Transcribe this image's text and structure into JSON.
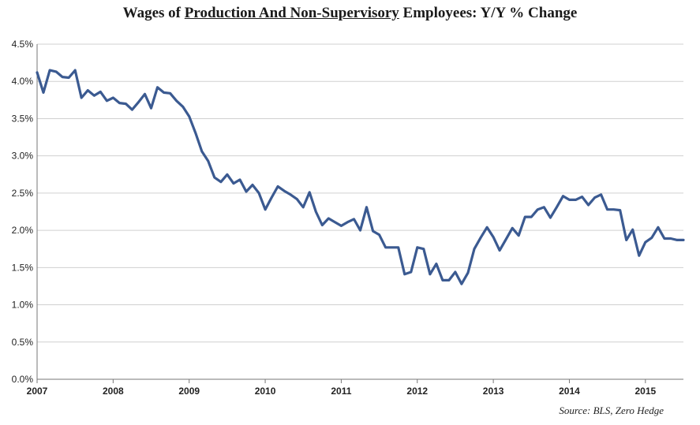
{
  "chart_data": {
    "type": "line",
    "title_parts": [
      "Wages of ",
      "Production And Non-Supervisory",
      " Employees: Y/Y % Change"
    ],
    "xlabel": "",
    "ylabel": "",
    "ylim": [
      0,
      4.5
    ],
    "y_ticks": [
      0,
      0.5,
      1.0,
      1.5,
      2.0,
      2.5,
      3.0,
      3.5,
      4.0,
      4.5
    ],
    "y_tick_labels": [
      "0.0%",
      "0.5%",
      "1.0%",
      "1.5%",
      "2.0%",
      "2.5%",
      "3.0%",
      "3.5%",
      "4.0%",
      "4.5%"
    ],
    "x_range": [
      2007.0,
      2015.5
    ],
    "x_ticks": [
      2007,
      2008,
      2009,
      2010,
      2011,
      2012,
      2013,
      2014,
      2015
    ],
    "x_tick_labels": [
      "2007",
      "2008",
      "2009",
      "2010",
      "2011",
      "2012",
      "2013",
      "2014",
      "2015"
    ],
    "grid": true,
    "series": [
      {
        "name": "Y/Y % Change",
        "color": "#3b5a91",
        "x": [
          2007.0,
          2007.083,
          2007.167,
          2007.25,
          2007.333,
          2007.417,
          2007.5,
          2007.583,
          2007.667,
          2007.75,
          2007.833,
          2007.917,
          2008.0,
          2008.083,
          2008.167,
          2008.25,
          2008.333,
          2008.417,
          2008.5,
          2008.583,
          2008.667,
          2008.75,
          2008.833,
          2008.917,
          2009.0,
          2009.083,
          2009.167,
          2009.25,
          2009.333,
          2009.417,
          2009.5,
          2009.583,
          2009.667,
          2009.75,
          2009.833,
          2009.917,
          2010.0,
          2010.083,
          2010.167,
          2010.25,
          2010.333,
          2010.417,
          2010.5,
          2010.583,
          2010.667,
          2010.75,
          2010.833,
          2010.917,
          2011.0,
          2011.083,
          2011.167,
          2011.25,
          2011.333,
          2011.417,
          2011.5,
          2011.583,
          2011.667,
          2011.75,
          2011.833,
          2011.917,
          2012.0,
          2012.083,
          2012.167,
          2012.25,
          2012.333,
          2012.417,
          2012.5,
          2012.583,
          2012.667,
          2012.75,
          2012.833,
          2012.917,
          2013.0,
          2013.083,
          2013.167,
          2013.25,
          2013.333,
          2013.417,
          2013.5,
          2013.583,
          2013.667,
          2013.75,
          2013.833,
          2013.917,
          2014.0,
          2014.083,
          2014.167,
          2014.25,
          2014.333,
          2014.417,
          2014.5,
          2014.583,
          2014.667,
          2014.75,
          2014.833,
          2014.917,
          2015.0,
          2015.083,
          2015.167,
          2015.25,
          2015.333,
          2015.417,
          2015.5
        ],
        "values": [
          4.12,
          3.85,
          4.15,
          4.13,
          4.06,
          4.05,
          4.15,
          3.78,
          3.88,
          3.81,
          3.86,
          3.74,
          3.78,
          3.71,
          3.7,
          3.62,
          3.72,
          3.83,
          3.64,
          3.92,
          3.85,
          3.84,
          3.74,
          3.66,
          3.53,
          3.31,
          3.06,
          2.93,
          2.71,
          2.65,
          2.75,
          2.63,
          2.68,
          2.52,
          2.61,
          2.5,
          2.28,
          2.44,
          2.59,
          2.53,
          2.48,
          2.42,
          2.31,
          2.51,
          2.25,
          2.07,
          2.16,
          2.11,
          2.06,
          2.11,
          2.15,
          2.0,
          2.31,
          1.99,
          1.94,
          1.77,
          1.77,
          1.77,
          1.41,
          1.44,
          1.77,
          1.75,
          1.41,
          1.55,
          1.33,
          1.33,
          1.44,
          1.28,
          1.43,
          1.75,
          1.9,
          2.04,
          1.91,
          1.73,
          1.88,
          2.03,
          1.93,
          2.18,
          2.18,
          2.28,
          2.31,
          2.17,
          2.31,
          2.46,
          2.41,
          2.41,
          2.45,
          2.34,
          2.44,
          2.48,
          2.28,
          2.28,
          2.27,
          1.87,
          2.01,
          1.66,
          1.84,
          1.9,
          2.04,
          1.89,
          1.89,
          1.87,
          1.87
        ]
      }
    ],
    "source_note": "Source: BLS, Zero Hedge"
  }
}
